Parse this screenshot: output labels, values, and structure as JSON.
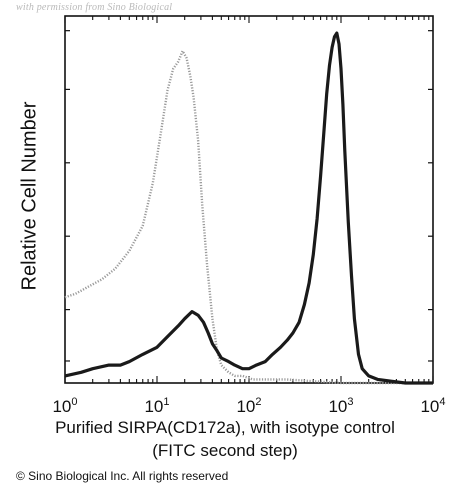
{
  "watermark": "with permission from Sino Biological",
  "copyright": "© Sino Biological Inc. All rights reserved",
  "chart_data": {
    "type": "line",
    "xlabel_line1": "Purified SIRPA(CD172a), with isotype control",
    "xlabel_line2": "(FITC second step)",
    "ylabel": "Relative Cell Number",
    "x_scale": "log",
    "xlim": [
      1,
      10000
    ],
    "ylim": [
      0,
      1
    ],
    "x_ticks": [
      {
        "base": "10",
        "exp": "0",
        "value": 1
      },
      {
        "base": "10",
        "exp": "1",
        "value": 10
      },
      {
        "base": "10",
        "exp": "2",
        "value": 100
      },
      {
        "base": "10",
        "exp": "3",
        "value": 1000
      },
      {
        "base": "10",
        "exp": "4",
        "value": 10000
      }
    ],
    "grid": false,
    "legend": "none",
    "series": [
      {
        "style": "dotted-light",
        "color": "#9a9a9a",
        "x": [
          1,
          1.3,
          1.8,
          2.5,
          3.5,
          5,
          7,
          9,
          11,
          13,
          15,
          17,
          19,
          21,
          23,
          25,
          28,
          31,
          35,
          40,
          45,
          50,
          60,
          70,
          85,
          110,
          150,
          250,
          500,
          1000,
          3000,
          10000
        ],
        "y": [
          0.24,
          0.25,
          0.27,
          0.29,
          0.32,
          0.37,
          0.44,
          0.56,
          0.7,
          0.82,
          0.88,
          0.9,
          0.93,
          0.91,
          0.86,
          0.8,
          0.68,
          0.5,
          0.33,
          0.18,
          0.09,
          0.05,
          0.03,
          0.02,
          0.02,
          0.01,
          0.01,
          0.01,
          0.005,
          0,
          0,
          0
        ]
      },
      {
        "style": "solid-dark",
        "color": "#1a1a1a",
        "x": [
          1,
          1.5,
          2,
          3,
          4,
          5,
          7,
          10,
          13,
          17,
          20,
          24,
          28,
          32,
          36,
          40,
          45,
          50,
          60,
          70,
          85,
          100,
          120,
          150,
          180,
          220,
          260,
          300,
          350,
          400,
          450,
          500,
          550,
          600,
          650,
          700,
          750,
          800,
          850,
          900,
          950,
          1000,
          1050,
          1100,
          1200,
          1300,
          1400,
          1550,
          1700,
          2000,
          2500,
          3500,
          5000,
          7000,
          10000
        ],
        "y": [
          0.02,
          0.03,
          0.04,
          0.05,
          0.05,
          0.06,
          0.08,
          0.1,
          0.13,
          0.16,
          0.18,
          0.2,
          0.19,
          0.17,
          0.14,
          0.11,
          0.09,
          0.07,
          0.06,
          0.05,
          0.04,
          0.04,
          0.05,
          0.06,
          0.08,
          0.1,
          0.12,
          0.14,
          0.17,
          0.22,
          0.28,
          0.36,
          0.46,
          0.58,
          0.7,
          0.81,
          0.89,
          0.94,
          0.97,
          0.98,
          0.95,
          0.88,
          0.78,
          0.65,
          0.45,
          0.3,
          0.18,
          0.08,
          0.04,
          0.02,
          0.01,
          0.005,
          0,
          0,
          0
        ]
      }
    ]
  }
}
